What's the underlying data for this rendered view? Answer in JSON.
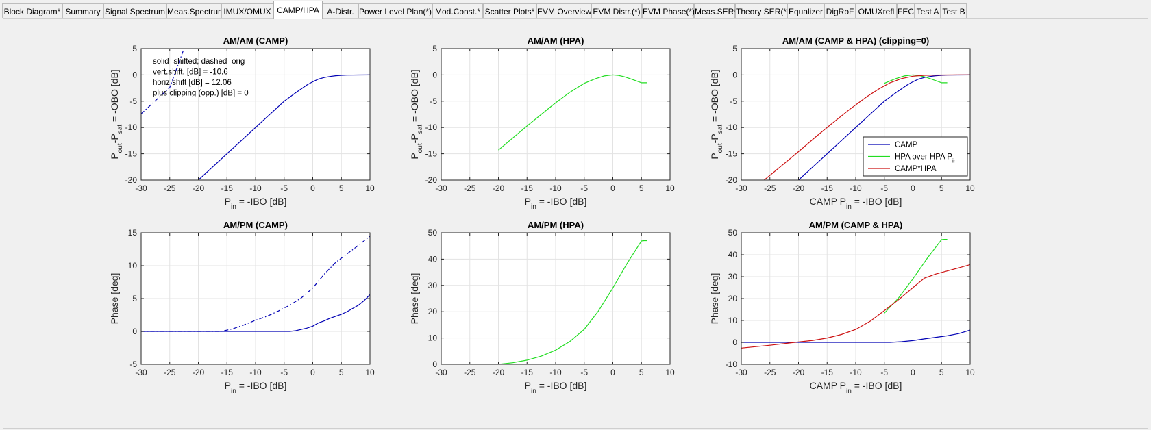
{
  "tabs": [
    {
      "label": "Block Diagram*"
    },
    {
      "label": "Summary"
    },
    {
      "label": "Signal Spectrum"
    },
    {
      "label": "Meas.Spectrum"
    },
    {
      "label": "IMUX/OMUX"
    },
    {
      "label": "CAMP/HPA",
      "active": true
    },
    {
      "label": "A-Distr."
    },
    {
      "label": "Power Level Plan(*)"
    },
    {
      "label": "Mod.Const.*"
    },
    {
      "label": "Scatter Plots*"
    },
    {
      "label": "EVM Overview"
    },
    {
      "label": "EVM Distr.(*)"
    },
    {
      "label": "EVM Phase(*)"
    },
    {
      "label": "Meas.SER*"
    },
    {
      "label": "Theory SER(*)"
    },
    {
      "label": "Equalizer"
    },
    {
      "label": "DigRoF"
    },
    {
      "label": "OMUXrefl"
    },
    {
      "label": "FEC"
    },
    {
      "label": "Test A"
    },
    {
      "label": "Test B"
    }
  ],
  "colors": {
    "camp": "#0000b4",
    "hpa": "#22dd22",
    "combined": "#cc1111"
  },
  "chart_data": [
    {
      "type": "line",
      "title": "AM/AM (CAMP)",
      "xlabel": "P_in = -IBO [dB]",
      "ylabel": "P_out-P_sat = -OBO [dB]",
      "xlim": [
        -30,
        10
      ],
      "ylim": [
        -20,
        5
      ],
      "xticks": [
        -30,
        -25,
        -20,
        -15,
        -10,
        -5,
        0,
        5,
        10
      ],
      "yticks": [
        -20,
        -15,
        -10,
        -5,
        0,
        5
      ],
      "grid": true,
      "annotation": [
        "solid=shifted; dashed=orig",
        "vert.shift. [dB] = -10.6",
        "horiz.shift [dB] = 12.06",
        "plus clipping (opp.) [dB] = 0"
      ],
      "series": [
        {
          "color_key": "camp",
          "style": "solid",
          "x": [
            -20,
            -16,
            -12,
            -8,
            -5,
            -3,
            -1,
            0,
            1,
            2,
            3,
            4,
            5,
            6,
            8,
            10
          ],
          "y": [
            -20,
            -16,
            -12,
            -8,
            -5,
            -3.4,
            -1.9,
            -1.3,
            -0.8,
            -0.5,
            -0.3,
            -0.15,
            -0.08,
            -0.04,
            -0.01,
            0
          ]
        },
        {
          "color_key": "camp",
          "style": "dashdot",
          "x": [
            -30,
            -25,
            -22.5
          ],
          "y": [
            -7.4,
            -2.4,
            5
          ]
        }
      ]
    },
    {
      "type": "line",
      "title": "AM/AM (HPA)",
      "xlabel": "P_in = -IBO [dB]",
      "ylabel": "P_out-P_sat = -OBO [dB]",
      "xlim": [
        -30,
        10
      ],
      "ylim": [
        -20,
        5
      ],
      "xticks": [
        -30,
        -25,
        -20,
        -15,
        -10,
        -5,
        0,
        5,
        10
      ],
      "yticks": [
        -20,
        -15,
        -10,
        -5,
        0,
        5
      ],
      "grid": true,
      "series": [
        {
          "color_key": "hpa",
          "style": "solid",
          "x": [
            -20,
            -17.5,
            -15,
            -12.5,
            -10,
            -7.5,
            -5,
            -3,
            -1.5,
            0,
            1,
            2,
            3,
            4,
            5,
            5.5,
            6
          ],
          "y": [
            -14.3,
            -12,
            -9.7,
            -7.5,
            -5.3,
            -3.3,
            -1.6,
            -0.7,
            -0.2,
            0,
            -0.1,
            -0.35,
            -0.7,
            -1.1,
            -1.5,
            -1.5,
            -1.5
          ]
        }
      ]
    },
    {
      "type": "line",
      "title": "AM/AM (CAMP & HPA)   (clipping=0)",
      "xlabel": "CAMP P_in = -IBO [dB]",
      "ylabel": "P_out-P_sat = -OBO [dB]",
      "xlim": [
        -30,
        10
      ],
      "ylim": [
        -20,
        5
      ],
      "xticks": [
        -30,
        -25,
        -20,
        -15,
        -10,
        -5,
        0,
        5,
        10
      ],
      "yticks": [
        -20,
        -15,
        -10,
        -5,
        0,
        5
      ],
      "grid": true,
      "legend": {
        "placement": "lower-right",
        "entries": [
          {
            "label": "CAMP",
            "color_key": "camp"
          },
          {
            "label": "HPA over HPA P_in",
            "color_key": "hpa"
          },
          {
            "label": "CAMP*HPA",
            "color_key": "combined"
          }
        ]
      },
      "series": [
        {
          "name": "CAMP",
          "color_key": "camp",
          "style": "solid",
          "x": [
            -20,
            -16,
            -12,
            -8,
            -5,
            -3,
            -1,
            0,
            1,
            2,
            3,
            4,
            5,
            6,
            8,
            10
          ],
          "y": [
            -20,
            -16,
            -12,
            -8,
            -5,
            -3.4,
            -1.9,
            -1.3,
            -0.8,
            -0.5,
            -0.3,
            -0.15,
            -0.08,
            -0.04,
            -0.01,
            0
          ]
        },
        {
          "name": "HPA over HPA P_in",
          "color_key": "hpa",
          "style": "solid",
          "x": [
            -5,
            -3,
            -1.5,
            0,
            1,
            2,
            3,
            4,
            5,
            5.5,
            6
          ],
          "y": [
            -1.6,
            -0.7,
            -0.2,
            0,
            -0.1,
            -0.35,
            -0.7,
            -1.1,
            -1.5,
            -1.5,
            -1.5
          ]
        },
        {
          "name": "CAMP*HPA",
          "color_key": "combined",
          "style": "solid",
          "x": [
            -26,
            -23,
            -20,
            -17,
            -14,
            -11,
            -8,
            -6,
            -4,
            -2,
            0,
            2,
            4,
            6,
            8,
            10
          ],
          "y": [
            -20,
            -17.3,
            -14.6,
            -11.8,
            -9.1,
            -6.5,
            -4.1,
            -2.7,
            -1.5,
            -0.7,
            -0.25,
            -0.08,
            -0.03,
            -0.01,
            0,
            0
          ]
        }
      ]
    },
    {
      "type": "line",
      "title": "AM/PM (CAMP)",
      "xlabel": "P_in = -IBO [dB]",
      "ylabel": "Phase [deg]",
      "xlim": [
        -30,
        10
      ],
      "ylim": [
        -5,
        15
      ],
      "xticks": [
        -30,
        -25,
        -20,
        -15,
        -10,
        -5,
        0,
        5,
        10
      ],
      "yticks": [
        -5,
        0,
        5,
        10,
        15
      ],
      "grid": true,
      "series": [
        {
          "color_key": "camp",
          "style": "solid",
          "x": [
            -30,
            -4,
            -3,
            -2,
            -1,
            0,
            1,
            2,
            3,
            4,
            5,
            6,
            7,
            8,
            9,
            10
          ],
          "y": [
            0,
            0,
            0.1,
            0.3,
            0.5,
            0.8,
            1.3,
            1.6,
            2,
            2.3,
            2.6,
            3,
            3.5,
            4,
            4.7,
            5.6
          ]
        },
        {
          "color_key": "camp",
          "style": "dashdot",
          "x": [
            -30,
            -16,
            -14,
            -12,
            -10,
            -8,
            -6,
            -4,
            -2,
            0,
            2,
            4,
            6,
            8,
            10
          ],
          "y": [
            0,
            0,
            0.4,
            1,
            1.7,
            2.3,
            3.1,
            4,
            5.1,
            6.6,
            8.7,
            10.5,
            11.8,
            13.1,
            14.5
          ]
        }
      ]
    },
    {
      "type": "line",
      "title": "AM/PM (HPA)",
      "xlabel": "P_in = -IBO [dB]",
      "ylabel": "Phase [deg]",
      "xlim": [
        -30,
        10
      ],
      "ylim": [
        0,
        50
      ],
      "xticks": [
        -30,
        -25,
        -20,
        -15,
        -10,
        -5,
        0,
        5,
        10
      ],
      "yticks": [
        0,
        10,
        20,
        30,
        40,
        50
      ],
      "grid": true,
      "series": [
        {
          "color_key": "hpa",
          "style": "solid",
          "x": [
            -20,
            -17.5,
            -15,
            -12.5,
            -10,
            -7.5,
            -5,
            -2.5,
            0,
            2.5,
            5,
            5.5,
            6
          ],
          "y": [
            0,
            0.6,
            1.6,
            3.1,
            5.4,
            8.7,
            13.3,
            20.3,
            29,
            38.4,
            46.9,
            47,
            47
          ]
        }
      ]
    },
    {
      "type": "line",
      "title": "AM/PM (CAMP & HPA)",
      "xlabel": "CAMP P_in = -IBO [dB]",
      "ylabel": "Phase [deg]",
      "xlim": [
        -30,
        10
      ],
      "ylim": [
        -10,
        50
      ],
      "xticks": [
        -30,
        -25,
        -20,
        -15,
        -10,
        -5,
        0,
        5,
        10
      ],
      "yticks": [
        -10,
        0,
        10,
        20,
        30,
        40,
        50
      ],
      "grid": true,
      "series": [
        {
          "name": "CAMP",
          "color_key": "camp",
          "style": "solid",
          "x": [
            -30,
            -4,
            -2,
            0,
            2,
            4,
            6,
            8,
            10
          ],
          "y": [
            0,
            0,
            0.3,
            0.8,
            1.6,
            2.3,
            3,
            4,
            5.6
          ]
        },
        {
          "name": "HPA over HPA P_in",
          "color_key": "hpa",
          "style": "solid",
          "x": [
            -5,
            -2.5,
            0,
            2.5,
            5,
            5.5,
            6
          ],
          "y": [
            13.3,
            20.3,
            29,
            38.4,
            46.9,
            47,
            47
          ]
        },
        {
          "name": "CAMP*HPA",
          "color_key": "combined",
          "style": "solid",
          "x": [
            -30,
            -25,
            -20,
            -17.5,
            -15,
            -12.5,
            -10,
            -7.5,
            -5,
            -2.5,
            0,
            2,
            4,
            6,
            8,
            10
          ],
          "y": [
            -2.6,
            -1.3,
            0.2,
            0.9,
            2,
            3.6,
            5.9,
            9.6,
            14.5,
            19.5,
            25,
            29.3,
            31.2,
            32.6,
            34,
            35.5
          ]
        }
      ]
    }
  ]
}
